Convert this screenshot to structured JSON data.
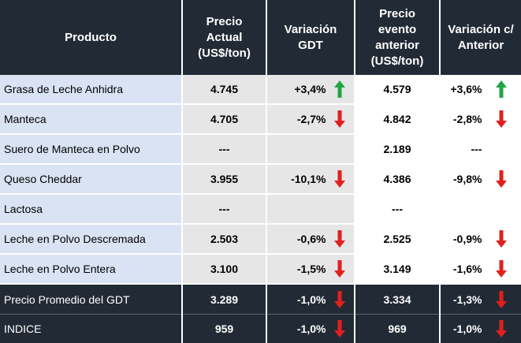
{
  "headers": {
    "product": "Producto",
    "price_current": [
      "Precio",
      "Actual",
      "(US$/ton)"
    ],
    "variation_gdt": [
      "Variación",
      "GDT"
    ],
    "price_previous": [
      "Precio",
      "evento",
      "anterior",
      "(US$/ton)"
    ],
    "variation_previous": [
      "Variación c/",
      "Anterior"
    ]
  },
  "colors": {
    "header_bg": "#222a35",
    "name_bg": "#dae3f3",
    "current_bg": "#e7e6e6",
    "up_arrow": "#21a545",
    "down_arrow": "#e0201e"
  },
  "rows": [
    {
      "product": "Grasa de Leche Anhidra",
      "current": "4.745",
      "var_gdt": "+3,4%",
      "var_gdt_dir": "up",
      "previous": "4.579",
      "var_prev": "+3,6%",
      "var_prev_dir": "up"
    },
    {
      "product": "Manteca",
      "current": "4.705",
      "var_gdt": "-2,7%",
      "var_gdt_dir": "down",
      "previous": "4.842",
      "var_prev": "-2,8%",
      "var_prev_dir": "down"
    },
    {
      "product": "Suero de Manteca en Polvo",
      "current": "---",
      "var_gdt": "",
      "var_gdt_dir": "none",
      "previous": "2.189",
      "var_prev": "---",
      "var_prev_dir": "none"
    },
    {
      "product": "Queso Cheddar",
      "current": "3.955",
      "var_gdt": "-10,1%",
      "var_gdt_dir": "down",
      "previous": "4.386",
      "var_prev": "-9,8%",
      "var_prev_dir": "down"
    },
    {
      "product": "Lactosa",
      "current": "---",
      "var_gdt": "",
      "var_gdt_dir": "none",
      "previous": "---",
      "var_prev": "",
      "var_prev_dir": "none"
    },
    {
      "product": "Leche en Polvo Descremada",
      "current": "2.503",
      "var_gdt": "-0,6%",
      "var_gdt_dir": "down",
      "previous": "2.525",
      "var_prev": "-0,9%",
      "var_prev_dir": "down"
    },
    {
      "product": "Leche en Polvo Entera",
      "current": "3.100",
      "var_gdt": "-1,5%",
      "var_gdt_dir": "down",
      "previous": "3.149",
      "var_prev": "-1,6%",
      "var_prev_dir": "down"
    }
  ],
  "footer_rows": [
    {
      "product": "Precio Promedio del GDT",
      "current": "3.289",
      "var_gdt": "-1,0%",
      "var_gdt_dir": "down",
      "previous": "3.334",
      "var_prev": "-1,3%",
      "var_prev_dir": "down"
    },
    {
      "product": "INDICE",
      "current": "959",
      "var_gdt": "-1,0%",
      "var_gdt_dir": "down",
      "previous": "969",
      "var_prev": "-1,0%",
      "var_prev_dir": "down"
    }
  ]
}
